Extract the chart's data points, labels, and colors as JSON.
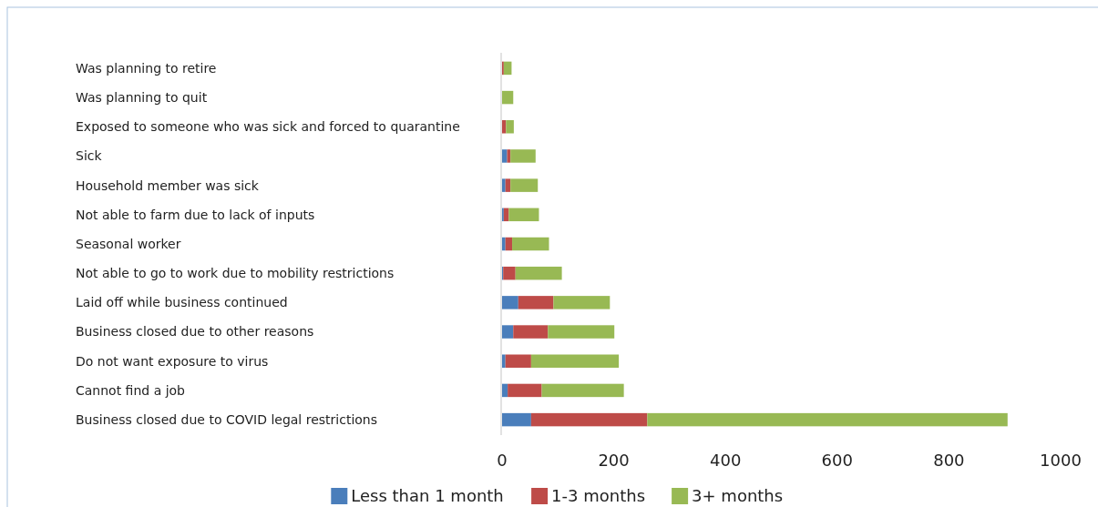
{
  "chart_data": {
    "type": "bar",
    "orientation": "horizontal",
    "stacked": true,
    "categories": [
      "Was planning to retire",
      "Was planning to quit",
      "Exposed to someone who was sick and forced to quarantine",
      "Sick",
      "Household member was sick",
      "Not able to farm due to lack of inputs",
      "Seasonal worker",
      "Not able to go to work due to mobility restrictions",
      "Laid off while business continued",
      "Business closed due to other reasons",
      "Do not want exposure to virus",
      "Cannot find a job",
      "Business closed due to COVID legal restrictions"
    ],
    "series": [
      {
        "name": "Less than 1 month",
        "color": "#4a7ebb",
        "values": [
          0,
          0,
          0,
          9,
          6,
          3,
          6,
          2,
          29,
          20,
          6,
          10,
          52
        ]
      },
      {
        "name": "1-3 months",
        "color": "#be4b48",
        "values": [
          3,
          0,
          7,
          6,
          9,
          9,
          12,
          22,
          63,
          62,
          46,
          61,
          208
        ]
      },
      {
        "name": "3+ months",
        "color": "#98b954",
        "values": [
          14,
          20,
          14,
          45,
          49,
          54,
          66,
          83,
          101,
          119,
          157,
          147,
          645
        ]
      }
    ],
    "xlim": [
      0,
      1000
    ],
    "xticks": [
      0,
      200,
      400,
      600,
      800,
      1000
    ],
    "grid": false,
    "legend": "bottom"
  }
}
